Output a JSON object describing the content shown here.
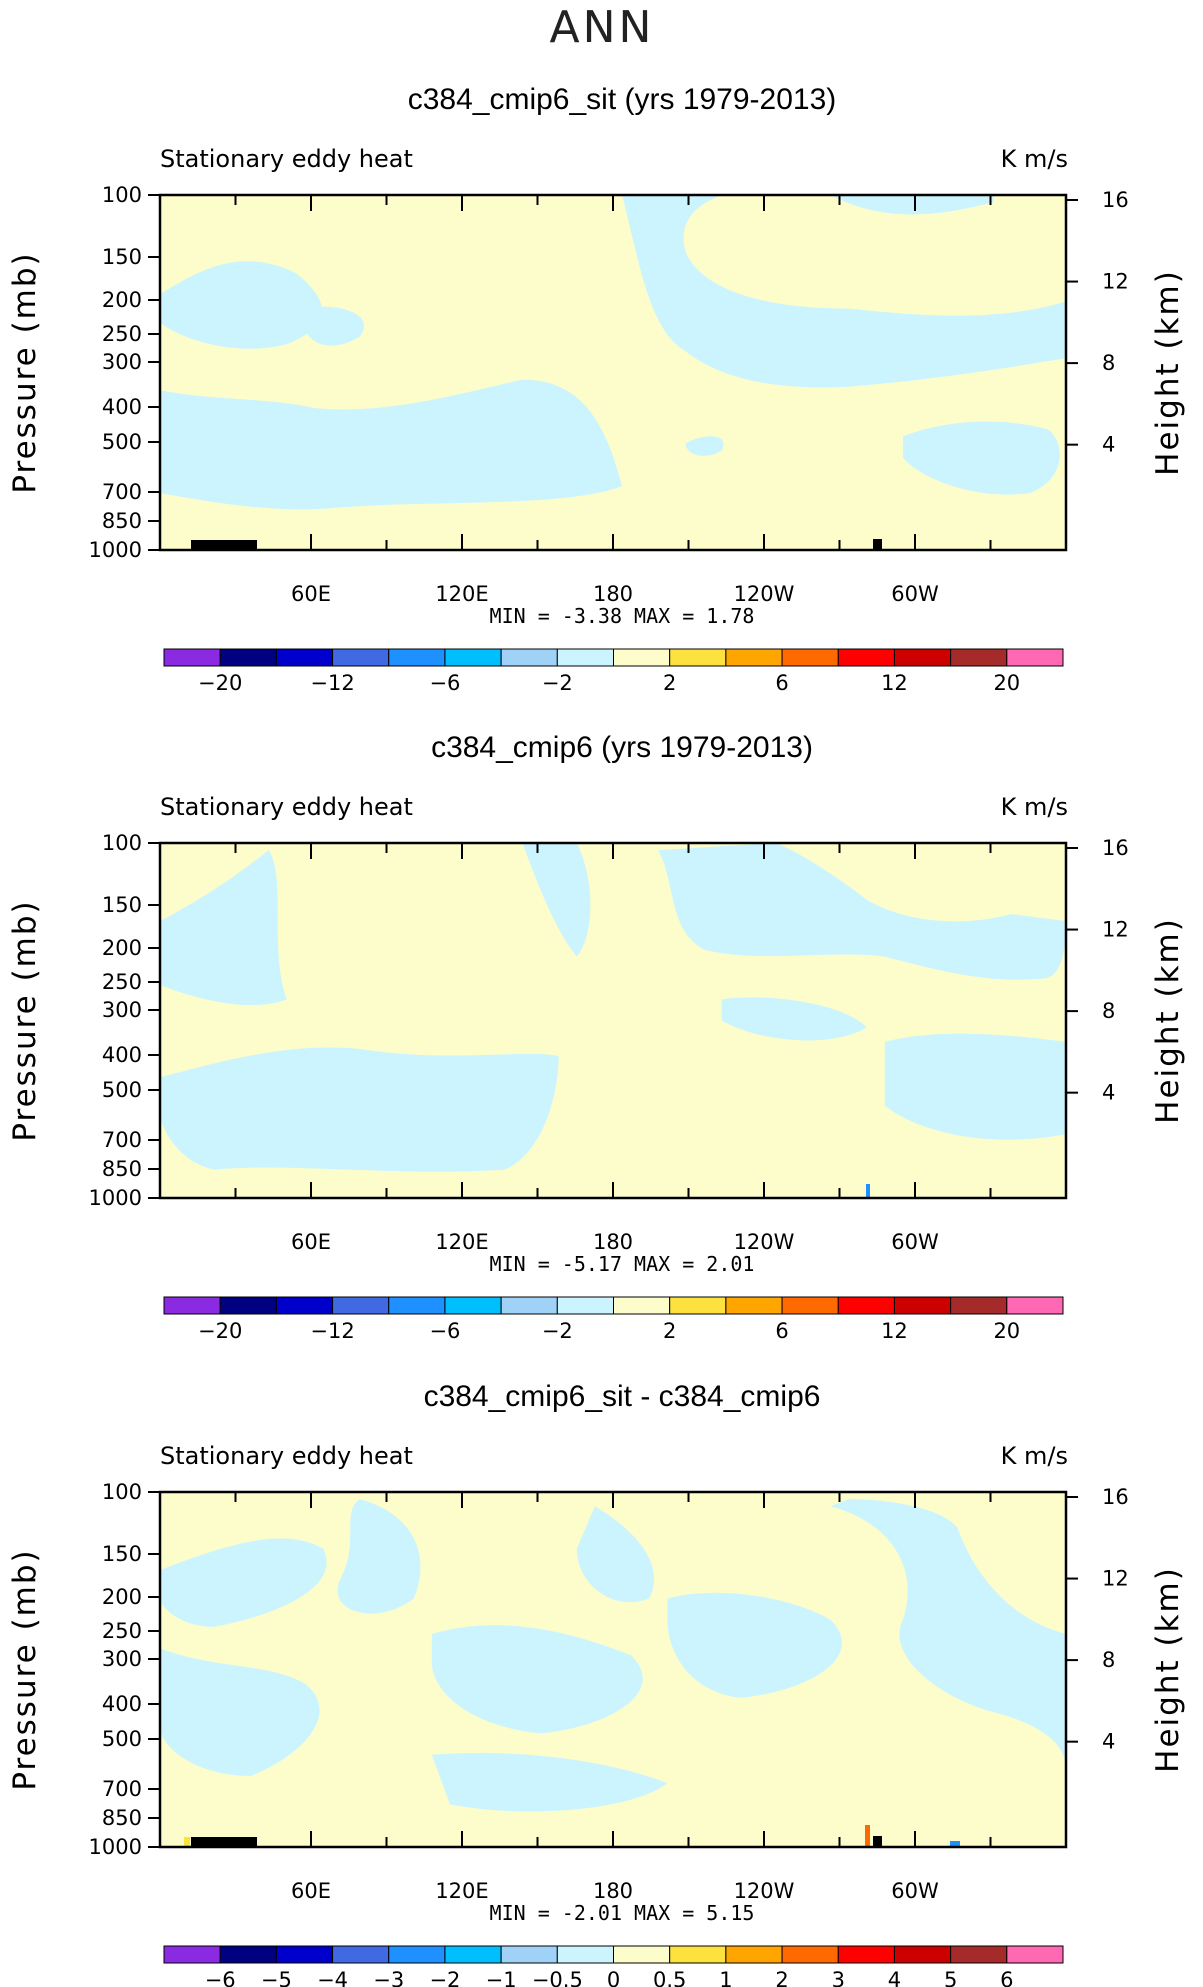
{
  "figure_title": "ANN",
  "colors": {
    "positive_fill": "#fdfdcc",
    "negative_fill": "#ccf4fe",
    "frame": "#000000"
  },
  "chart_data": [
    {
      "type": "heatmap",
      "title": "c384_cmip6_sit (yrs 1979-2013)",
      "left_label": "Stationary eddy heat",
      "right_label": "K m/s",
      "ylabel": "Pressure (mb)",
      "y2label": "Height (km)",
      "ylim": [
        1000,
        100
      ],
      "yticks": [
        100,
        150,
        200,
        250,
        300,
        400,
        500,
        700,
        850,
        1000
      ],
      "y2ticks": [
        16,
        12,
        8,
        4
      ],
      "xlim": [
        0,
        360
      ],
      "xticks": [
        "60E",
        "120E",
        "180",
        "120W",
        "60W"
      ],
      "xtick_values": [
        60,
        120,
        180,
        240,
        300
      ],
      "min_max_text": "MIN =   -3.38   MAX =    1.78",
      "colorbar_levels": [
        "-20",
        "-12",
        "-6",
        "-2",
        "2",
        "6",
        "12",
        "20"
      ],
      "colorbar_colors": [
        "#8a2be2",
        "#000080",
        "#0000cd",
        "#4169e1",
        "#1e90ff",
        "#00bfff",
        "#a0d2f8",
        "#ccf4fe",
        "#fdfdcc",
        "#fde23f",
        "#ffa500",
        "#ff6a00",
        "#ff0000",
        "#cd0000",
        "#a52a2a",
        "#ff69b4"
      ],
      "colorbar_boundaries": [
        -20,
        -16,
        -12,
        -8,
        -6,
        -4,
        -2,
        -1,
        1,
        2,
        4,
        6,
        8,
        12,
        16,
        20
      ]
    },
    {
      "type": "heatmap",
      "title": "c384_cmip6 (yrs 1979-2013)",
      "left_label": "Stationary eddy heat",
      "right_label": "K m/s",
      "ylabel": "Pressure (mb)",
      "y2label": "Height (km)",
      "ylim": [
        1000,
        100
      ],
      "yticks": [
        100,
        150,
        200,
        250,
        300,
        400,
        500,
        700,
        850,
        1000
      ],
      "y2ticks": [
        16,
        12,
        8,
        4
      ],
      "xlim": [
        0,
        360
      ],
      "xticks": [
        "60E",
        "120E",
        "180",
        "120W",
        "60W"
      ],
      "xtick_values": [
        60,
        120,
        180,
        240,
        300
      ],
      "min_max_text": "MIN =   -5.17   MAX =    2.01",
      "colorbar_levels": [
        "-20",
        "-12",
        "-6",
        "-2",
        "2",
        "6",
        "12",
        "20"
      ],
      "colorbar_colors": [
        "#8a2be2",
        "#000080",
        "#0000cd",
        "#4169e1",
        "#1e90ff",
        "#00bfff",
        "#a0d2f8",
        "#ccf4fe",
        "#fdfdcc",
        "#fde23f",
        "#ffa500",
        "#ff6a00",
        "#ff0000",
        "#cd0000",
        "#a52a2a",
        "#ff69b4"
      ],
      "colorbar_boundaries": [
        -20,
        -16,
        -12,
        -8,
        -6,
        -4,
        -2,
        -1,
        1,
        2,
        4,
        6,
        8,
        12,
        16,
        20
      ]
    },
    {
      "type": "heatmap",
      "title": "c384_cmip6_sit - c384_cmip6",
      "left_label": "Stationary eddy heat",
      "right_label": "K m/s",
      "ylabel": "Pressure (mb)",
      "y2label": "Height (km)",
      "ylim": [
        1000,
        100
      ],
      "yticks": [
        100,
        150,
        200,
        250,
        300,
        400,
        500,
        700,
        850,
        1000
      ],
      "y2ticks": [
        16,
        12,
        8,
        4
      ],
      "xlim": [
        0,
        360
      ],
      "xticks": [
        "60E",
        "120E",
        "180",
        "120W",
        "60W"
      ],
      "xtick_values": [
        60,
        120,
        180,
        240,
        300
      ],
      "min_max_text": "MIN =   -2.01   MAX =    5.15",
      "colorbar_levels": [
        "-6",
        "-5",
        "-4",
        "-3",
        "-2",
        "-1",
        "-0.5",
        "0",
        "0.5",
        "1",
        "2",
        "3",
        "4",
        "5",
        "6"
      ],
      "colorbar_colors": [
        "#8a2be2",
        "#000080",
        "#0000cd",
        "#4169e1",
        "#1e90ff",
        "#00bfff",
        "#a0d2f8",
        "#ccf4fe",
        "#fdfdcc",
        "#fde23f",
        "#ffa500",
        "#ff6a00",
        "#ff0000",
        "#cd0000",
        "#a52a2a",
        "#ff69b4"
      ],
      "colorbar_boundaries": [
        -6,
        -5,
        -4,
        -3,
        -2,
        -1,
        -0.5,
        0,
        0.5,
        1,
        2,
        3,
        4,
        5,
        6
      ]
    }
  ]
}
